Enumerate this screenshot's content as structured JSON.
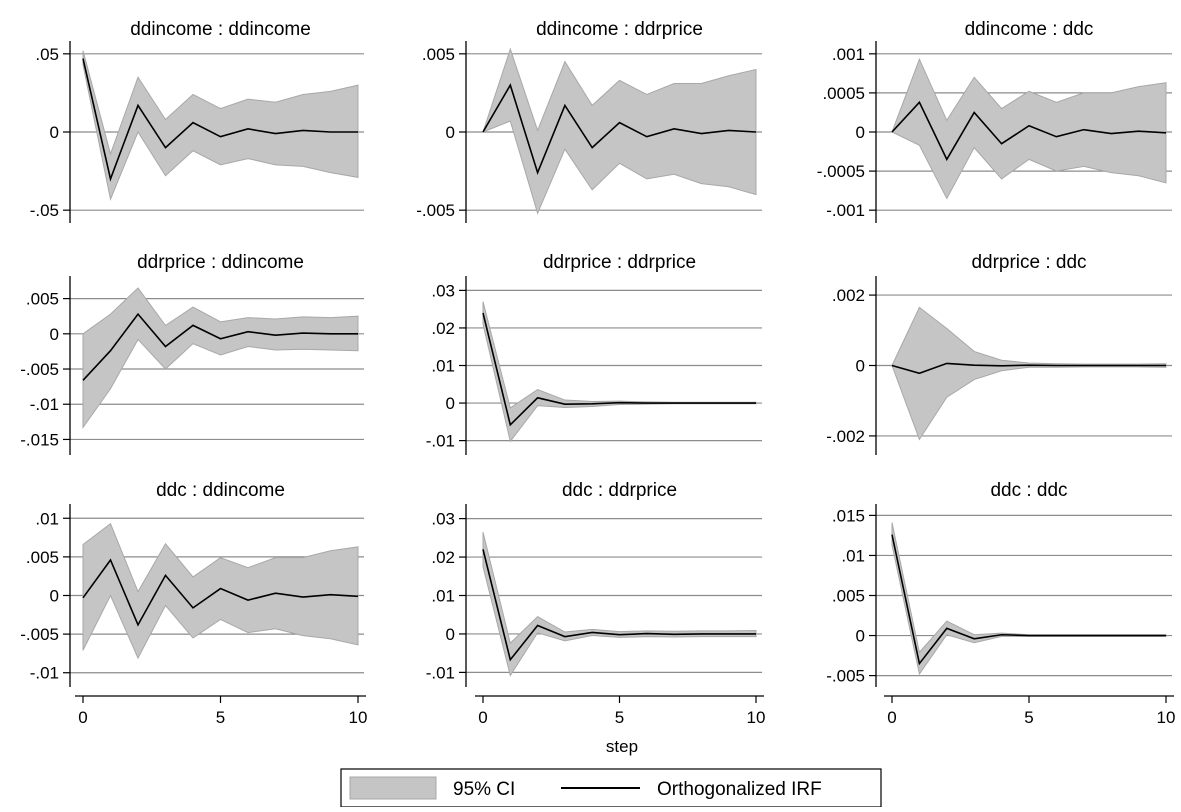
{
  "chart_data": {
    "type": "line",
    "xlabel": "step",
    "x": [
      0,
      1,
      2,
      3,
      4,
      5,
      6,
      7,
      8,
      9,
      10
    ],
    "xticks": [
      0,
      5,
      10
    ],
    "xtick_labels": [
      "0",
      "5",
      "10"
    ],
    "grid": "horizontal",
    "legend": {
      "position": "bottom-center",
      "entries": [
        {
          "label": "95% CI",
          "kind": "band",
          "color": "#c5c5c5"
        },
        {
          "label": "Orthogonalized IRF",
          "kind": "line",
          "color": "#000000"
        }
      ]
    },
    "colors": {
      "band": "#c5c5c5",
      "band_edge": "#a8a8a8",
      "line": "#000000",
      "grid": "#8c8c8c"
    },
    "panels": [
      {
        "title": "ddincome : ddincome",
        "ylim": [
          -0.055,
          0.055
        ],
        "yticks": [
          -0.05,
          0,
          0.05
        ],
        "ytick_labels": [
          "-.05",
          "0",
          ".05"
        ],
        "irf": [
          0.047,
          -0.03,
          0.017,
          -0.01,
          0.006,
          -0.003,
          0.002,
          -0.001,
          0.001,
          0.0,
          0.0
        ],
        "lower": [
          0.043,
          -0.043,
          0.0,
          -0.028,
          -0.012,
          -0.021,
          -0.017,
          -0.021,
          -0.022,
          -0.026,
          -0.029
        ],
        "upper": [
          0.052,
          -0.014,
          0.035,
          0.008,
          0.024,
          0.015,
          0.021,
          0.019,
          0.024,
          0.026,
          0.03
        ]
      },
      {
        "title": "ddincome : ddrprice",
        "ylim": [
          -0.0055,
          0.0055
        ],
        "yticks": [
          -0.005,
          0,
          0.005
        ],
        "ytick_labels": [
          "-.005",
          "0",
          ".005"
        ],
        "irf": [
          0.0,
          0.003,
          -0.0026,
          0.0017,
          -0.001,
          0.0006,
          -0.0003,
          0.0002,
          -0.0001,
          0.0001,
          0.0
        ],
        "lower": [
          0.0,
          0.0007,
          -0.0052,
          -0.0011,
          -0.0037,
          -0.002,
          -0.003,
          -0.0027,
          -0.0033,
          -0.0035,
          -0.004
        ],
        "upper": [
          0.0,
          0.0053,
          0.0001,
          0.0045,
          0.0017,
          0.0033,
          0.0024,
          0.0031,
          0.0031,
          0.0036,
          0.004
        ]
      },
      {
        "title": "ddincome : ddc",
        "ylim": [
          -0.0011,
          0.0011
        ],
        "yticks": [
          -0.001,
          -0.0005,
          0,
          0.0005,
          0.001
        ],
        "ytick_labels": [
          "-.001",
          "-.0005",
          "0",
          ".0005",
          ".001"
        ],
        "irf": [
          0.0,
          0.00038,
          -0.00035,
          0.00025,
          -0.00015,
          8e-05,
          -6e-05,
          3e-05,
          -2e-05,
          1e-05,
          -1e-05
        ],
        "lower": [
          0.0,
          -0.00017,
          -0.00085,
          -0.0002,
          -0.0006,
          -0.00035,
          -0.0005,
          -0.00044,
          -0.00052,
          -0.00056,
          -0.00065
        ],
        "upper": [
          0.0,
          0.00093,
          0.00015,
          0.0007,
          0.0003,
          0.00052,
          0.00038,
          0.0005,
          0.0005,
          0.00058,
          0.00063
        ]
      },
      {
        "title": "ddrprice : ddincome",
        "ylim": [
          -0.0165,
          0.0075
        ],
        "yticks": [
          -0.015,
          -0.01,
          -0.005,
          0,
          0.005
        ],
        "ytick_labels": [
          "-.015",
          "-.01",
          "-.005",
          "0",
          ".005"
        ],
        "irf": [
          -0.0066,
          -0.0024,
          0.0028,
          -0.0018,
          0.0012,
          -0.0007,
          0.0003,
          -0.0002,
          0.0001,
          0.0,
          0.0
        ],
        "lower": [
          -0.0133,
          -0.0078,
          -0.0008,
          -0.005,
          -0.0014,
          -0.003,
          -0.0018,
          -0.0023,
          -0.0022,
          -0.0023,
          -0.0024
        ],
        "upper": [
          0.0,
          0.0028,
          0.0065,
          0.0012,
          0.0038,
          0.0017,
          0.0023,
          0.0021,
          0.0024,
          0.0023,
          0.0025
        ]
      },
      {
        "title": "ddrprice : ddrprice",
        "ylim": [
          -0.0125,
          0.0325
        ],
        "yticks": [
          -0.01,
          0,
          0.01,
          0.02,
          0.03
        ],
        "ytick_labels": [
          "-.01",
          "0",
          ".01",
          ".02",
          ".03"
        ],
        "irf": [
          0.024,
          -0.0058,
          0.0014,
          -0.0003,
          -0.0002,
          0.0001,
          0.0,
          0.0,
          0.0,
          0.0,
          0.0
        ],
        "lower": [
          0.021,
          -0.0102,
          -0.0007,
          -0.0012,
          -0.0009,
          -0.0004,
          -0.0003,
          -0.0002,
          -0.0002,
          -0.0002,
          -0.0002
        ],
        "upper": [
          0.027,
          -0.0013,
          0.0036,
          0.0008,
          0.0004,
          0.0005,
          0.0003,
          0.0002,
          0.0002,
          0.0002,
          0.0002
        ]
      },
      {
        "title": "ddrprice : ddc",
        "ylim": [
          -0.0024,
          0.0024
        ],
        "yticks": [
          -0.002,
          0,
          0.002
        ],
        "ytick_labels": [
          "-.002",
          "0",
          ".002"
        ],
        "irf": [
          0.0,
          -0.00022,
          6e-05,
          1e-05,
          -1e-05,
          1e-05,
          0.0,
          0.0,
          0.0,
          0.0,
          0.0
        ],
        "lower": [
          0.0,
          -0.0021,
          -0.0009,
          -0.0004,
          -0.00015,
          -5e-05,
          -5e-05,
          -4e-05,
          -4e-05,
          -4e-05,
          -5e-05
        ],
        "upper": [
          0.0,
          0.00165,
          0.00105,
          0.0004,
          0.00015,
          7e-05,
          5e-05,
          4e-05,
          4e-05,
          4e-05,
          5e-05
        ]
      },
      {
        "title": "ddc : ddincome",
        "ylim": [
          -0.0112,
          0.0112
        ],
        "yticks": [
          -0.01,
          -0.005,
          0,
          0.005,
          0.01
        ],
        "ytick_labels": [
          "-.01",
          "-.005",
          "0",
          ".005",
          ".01"
        ],
        "irf": [
          -0.0003,
          0.0046,
          -0.0038,
          0.0026,
          -0.0016,
          0.0009,
          -0.0006,
          0.0003,
          -0.0002,
          0.0001,
          -0.0001
        ],
        "lower": [
          -0.0071,
          0.0,
          -0.0081,
          -0.0013,
          -0.0055,
          -0.0031,
          -0.0048,
          -0.0043,
          -0.0052,
          -0.0056,
          -0.0064
        ],
        "upper": [
          0.0066,
          0.0093,
          0.0005,
          0.0067,
          0.0024,
          0.0049,
          0.0036,
          0.0049,
          0.0049,
          0.0058,
          0.0063
        ]
      },
      {
        "title": "ddc : ddrprice",
        "ylim": [
          -0.0125,
          0.0325
        ],
        "yticks": [
          -0.01,
          0,
          0.01,
          0.02,
          0.03
        ],
        "ytick_labels": [
          "-.01",
          "0",
          ".01",
          ".02",
          ".03"
        ],
        "irf": [
          0.022,
          -0.0067,
          0.0022,
          -0.0007,
          0.0004,
          -0.0002,
          0.0001,
          -0.0001,
          0.0,
          0.0,
          0.0
        ],
        "lower": [
          0.0175,
          -0.0108,
          0.0003,
          -0.0018,
          -0.0004,
          -0.0009,
          -0.0007,
          -0.0008,
          -0.0007,
          -0.0007,
          -0.0007
        ],
        "upper": [
          0.0265,
          -0.0024,
          0.0045,
          0.0005,
          0.0012,
          0.0006,
          0.0008,
          0.0007,
          0.0008,
          0.0008,
          0.0009
        ]
      },
      {
        "title": "ddc : ddc",
        "ylim": [
          -0.0058,
          0.0158
        ],
        "yticks": [
          -0.005,
          0,
          0.005,
          0.01,
          0.015
        ],
        "ytick_labels": [
          "-.005",
          "0",
          ".005",
          ".01",
          ".015"
        ],
        "irf": [
          0.0126,
          -0.0035,
          0.0009,
          -0.0004,
          0.0001,
          0.0,
          0.0,
          0.0,
          0.0,
          0.0,
          0.0
        ],
        "lower": [
          0.0113,
          -0.0048,
          0.0001,
          -0.0009,
          -0.0001,
          -0.0001,
          -0.0001,
          -0.0001,
          -0.0001,
          -0.0001,
          -0.0001
        ],
        "upper": [
          0.0141,
          -0.0021,
          0.0018,
          0.0001,
          0.0003,
          0.0001,
          0.0001,
          0.0001,
          0.0001,
          0.0001,
          0.0001
        ]
      }
    ]
  }
}
